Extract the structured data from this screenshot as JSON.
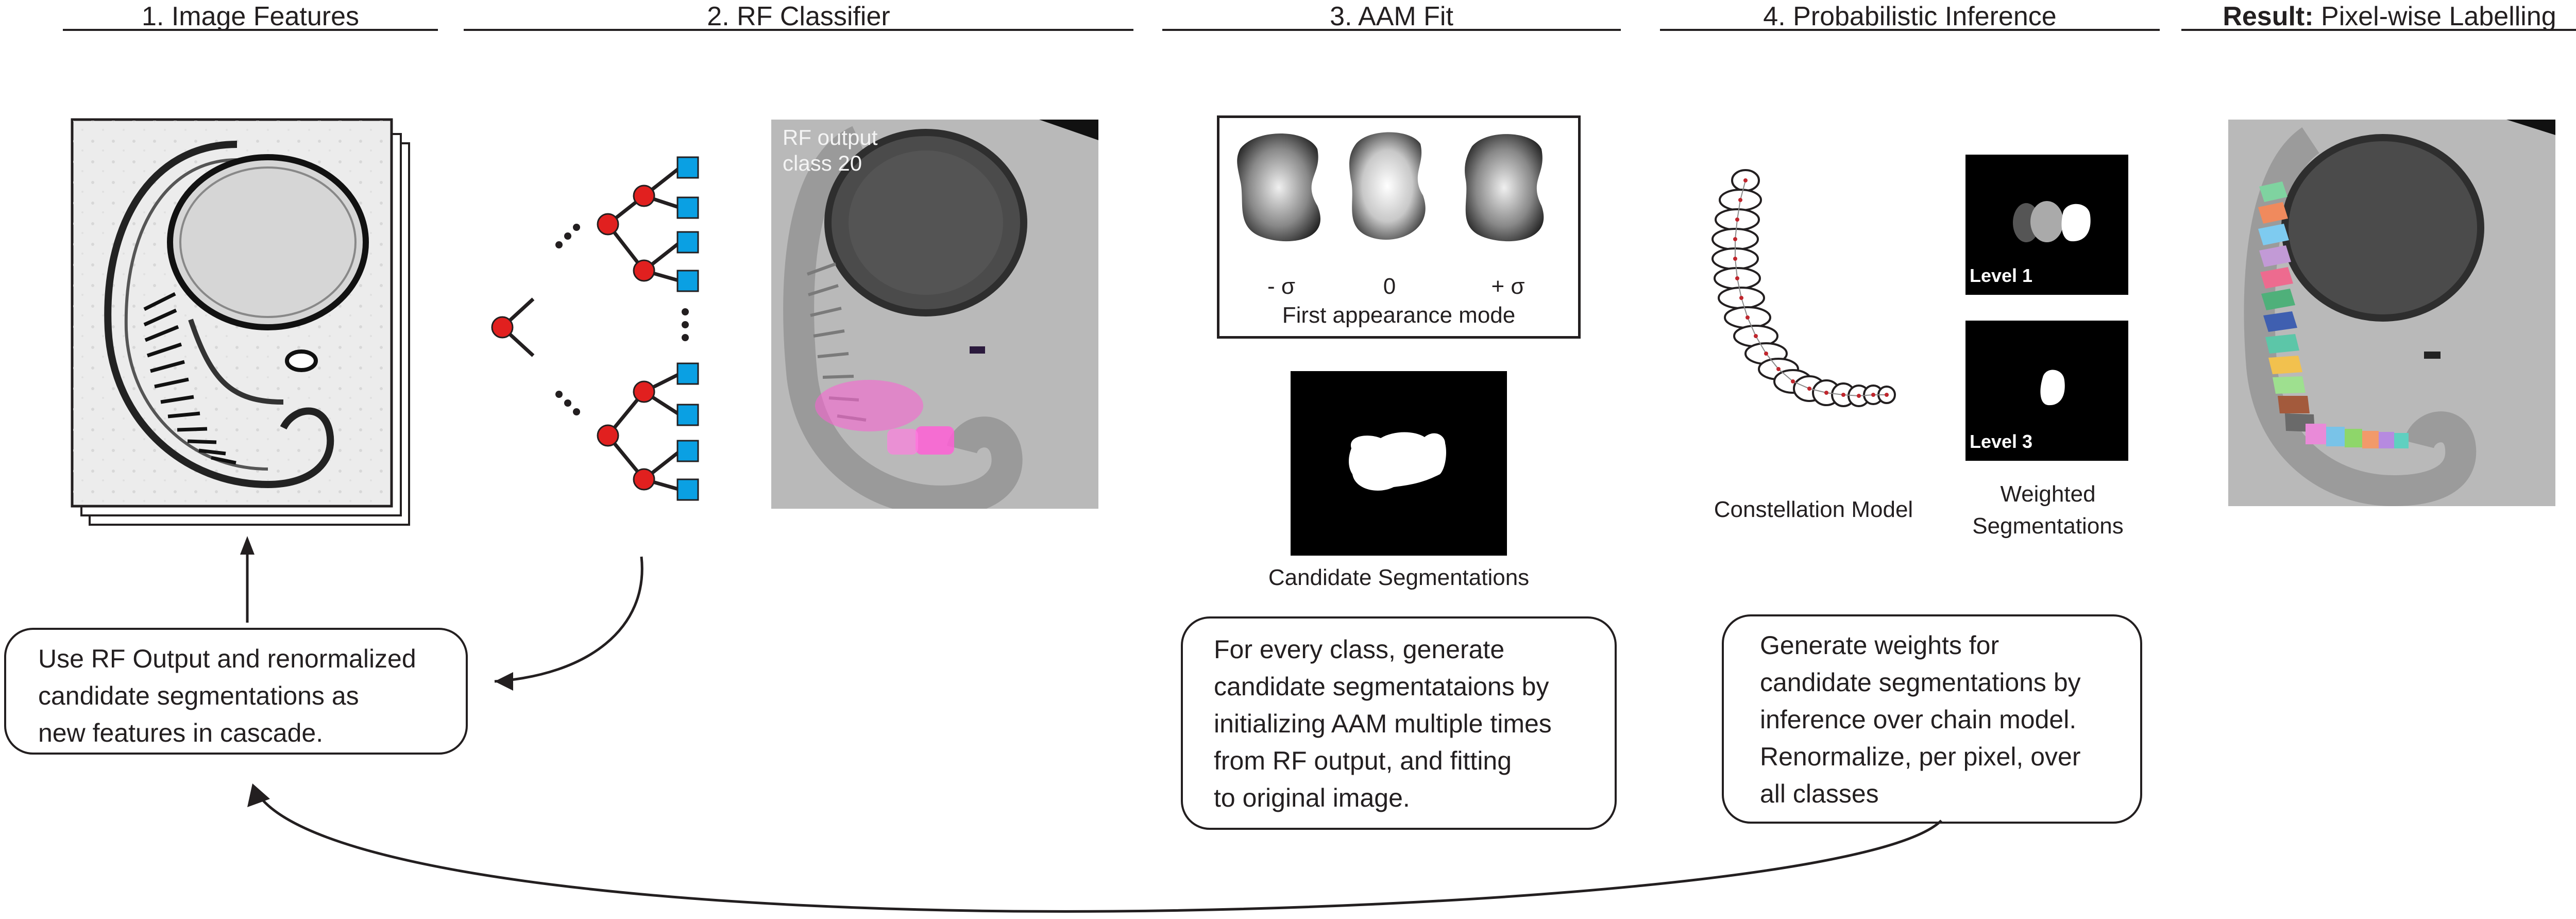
{
  "headers": {
    "h1": "1. Image Features",
    "h2": "2. RF Classifier",
    "h3": "3. AAM Fit",
    "h4": "4. Probabilistic Inference",
    "h5_bold": "Result:",
    "h5_rest": " Pixel-wise Labelling"
  },
  "rf_panel": {
    "overlay_line1": "RF output",
    "overlay_line2": "class 20"
  },
  "aam": {
    "mode_minus": "- σ",
    "mode_zero": "0",
    "mode_plus": "+ σ",
    "modes_caption": "First appearance mode",
    "candidate_caption": "Candidate Segmentations"
  },
  "inference": {
    "level1": "Level 1",
    "level3": "Level 3",
    "constellation_caption": "Constellation Model",
    "weighted_caption_line1": "Weighted",
    "weighted_caption_line2": "Segmentations"
  },
  "boxes": {
    "cascade": [
      "Use RF Output and renormalized",
      "candidate segmentations as",
      "new features in cascade."
    ],
    "aam": [
      "For every class, generate",
      "candidate segmentataions by",
      "initializing AAM multiple times",
      "from RF output, and fitting",
      "to original image."
    ],
    "inference": [
      "Generate weights for",
      "candidate segmentations by",
      "inference over chain model.",
      "Renormalize, per pixel, over",
      "all classes"
    ]
  },
  "colors": {
    "text": "#231f20",
    "tree_node": "#e1201f",
    "tree_leaf": "#0aa0e3",
    "rf_highlight": "#ff5fd6",
    "embryo_background": "#b9b9b9"
  }
}
